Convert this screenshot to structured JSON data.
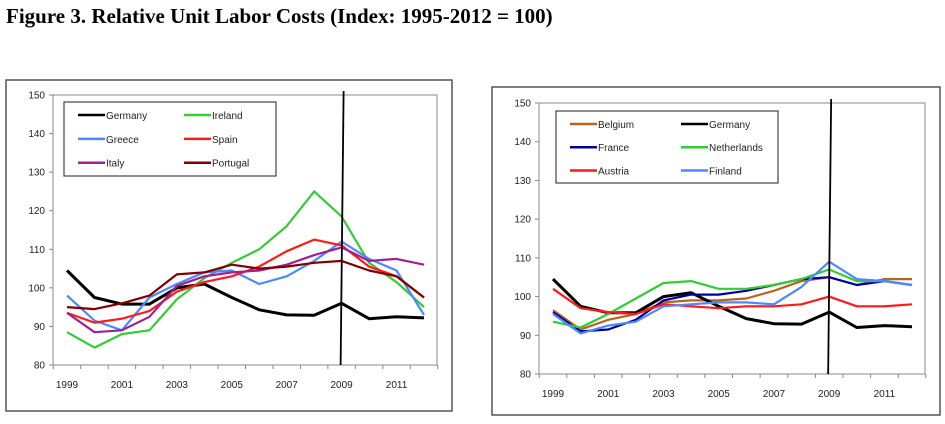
{
  "title": "Figure 3. Relative Unit Labor Costs (Index: 1995-2012 = 100)",
  "chart_data": [
    {
      "type": "line",
      "title": "",
      "xlabel": "",
      "ylabel": "",
      "ylim": [
        80,
        150
      ],
      "yticks": [
        "80",
        "90",
        "100",
        "110",
        "120",
        "130",
        "140",
        "150"
      ],
      "xticks": [
        "1999",
        "2001",
        "2003",
        "2005",
        "2007",
        "2009",
        "2011"
      ],
      "x": [
        1999,
        2000,
        2001,
        2002,
        2003,
        2004,
        2005,
        2006,
        2007,
        2008,
        2009,
        2010,
        2011,
        2012
      ],
      "vline_x": 2009,
      "legend_placement": "top-left",
      "series": [
        {
          "name": "Germany",
          "color": "#000000",
          "values": [
            104.5,
            97.5,
            95.8,
            95.8,
            100,
            101,
            97.5,
            94.3,
            93,
            92.9,
            96,
            92,
            92.5,
            92.2
          ]
        },
        {
          "name": "Ireland",
          "color": "#33cc33",
          "values": [
            88.5,
            84.5,
            88,
            89,
            97,
            102.5,
            106.5,
            110,
            116,
            125,
            118.5,
            106.5,
            101.5,
            95
          ]
        },
        {
          "name": "Greece",
          "color": "#4d88ff",
          "values": [
            98,
            91.5,
            89,
            97.5,
            101,
            104,
            104.5,
            101,
            103,
            107,
            112,
            107.5,
            104.5,
            93
          ]
        },
        {
          "name": "Spain",
          "color": "#ff1a1a",
          "values": [
            93.5,
            91,
            92,
            94,
            99,
            101.5,
            103,
            105.5,
            109.5,
            112.5,
            111,
            105.5,
            103,
            97.5
          ]
        },
        {
          "name": "Italy",
          "color": "#a0208f",
          "values": [
            93.5,
            88.5,
            89,
            92.5,
            100.5,
            103,
            104,
            104.5,
            106,
            108.5,
            110.5,
            107,
            107.5,
            106
          ]
        },
        {
          "name": "Portugal",
          "color": "#800000",
          "values": [
            95,
            94.5,
            96,
            98,
            103.5,
            104,
            106,
            105,
            105.5,
            106.5,
            107,
            104.5,
            103,
            97.5
          ]
        }
      ]
    },
    {
      "type": "line",
      "title": "",
      "xlabel": "",
      "ylabel": "",
      "ylim": [
        80,
        150
      ],
      "yticks": [
        "80",
        "90",
        "100",
        "110",
        "120",
        "130",
        "140",
        "150"
      ],
      "xticks": [
        "1999",
        "2001",
        "2003",
        "2005",
        "2007",
        "2009",
        "2011"
      ],
      "x": [
        1999,
        2000,
        2001,
        2002,
        2003,
        2004,
        2005,
        2006,
        2007,
        2008,
        2009,
        2010,
        2011,
        2012
      ],
      "vline_x": 2009,
      "legend_placement": "top-left",
      "series": [
        {
          "name": "Belgium",
          "color": "#b5651d",
          "values": [
            96.5,
            91.5,
            94,
            95.5,
            98.5,
            99,
            99,
            99.5,
            101.5,
            104,
            105,
            103,
            104.5,
            104.5
          ]
        },
        {
          "name": "Germany",
          "color": "#000000",
          "values": [
            104.5,
            97.5,
            95.8,
            95.8,
            100,
            101,
            97.5,
            94.3,
            93,
            92.9,
            96,
            92,
            92.5,
            92.2
          ]
        },
        {
          "name": "France",
          "color": "#000099",
          "values": [
            96,
            91,
            91.5,
            94,
            99,
            100.5,
            100.5,
            101.5,
            103,
            104.5,
            105,
            103,
            104,
            103
          ]
        },
        {
          "name": "Netherlands",
          "color": "#33cc33",
          "values": [
            93.5,
            92,
            95.5,
            99.5,
            103.5,
            104,
            102,
            102,
            103,
            104.5,
            107,
            104,
            104,
            103
          ]
        },
        {
          "name": "Austria",
          "color": "#ff1a1a",
          "values": [
            102,
            97,
            96,
            95.5,
            98,
            97.5,
            97,
            97.5,
            97.5,
            98,
            100,
            97.5,
            97.5,
            98
          ]
        },
        {
          "name": "Finland",
          "color": "#4d88ff",
          "values": [
            95.5,
            90.5,
            92.5,
            93.5,
            97.5,
            98,
            98.5,
            98.5,
            98,
            102.5,
            109,
            104.5,
            104,
            103
          ]
        }
      ]
    }
  ]
}
